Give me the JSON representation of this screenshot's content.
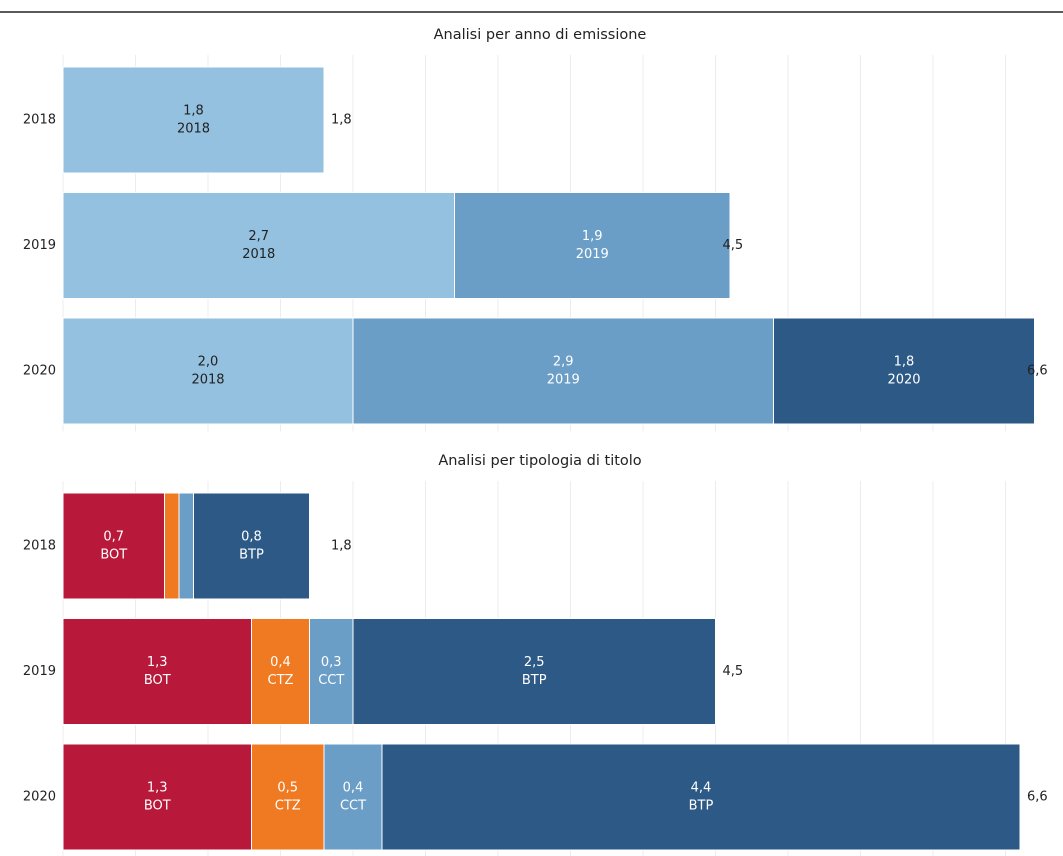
{
  "chart_data": [
    {
      "type": "bar",
      "orientation": "horizontal",
      "stacked": true,
      "title": "Analisi per anno di emissione",
      "categories": [
        "2018",
        "2019",
        "2020"
      ],
      "series": [
        {
          "name": "2018",
          "color": "#94c1e0",
          "values": [
            1.8,
            2.7,
            2.0
          ],
          "value_labels": [
            "1,8",
            "2,7",
            "2,0"
          ]
        },
        {
          "name": "2019",
          "color": "#6a9ec7",
          "values": [
            null,
            1.9,
            2.9
          ],
          "value_labels": [
            null,
            "1,9",
            "2,9"
          ]
        },
        {
          "name": "2020",
          "color": "#2d5986",
          "values": [
            null,
            null,
            1.8
          ],
          "value_labels": [
            null,
            null,
            "1,8"
          ]
        }
      ],
      "totals": [
        1.8,
        4.5,
        6.6
      ],
      "total_labels": [
        "1,8",
        "4,5",
        "6,6"
      ],
      "xlim": [
        0,
        6.6
      ],
      "xticks": [
        0,
        0.5,
        1,
        1.5,
        2,
        2.5,
        3,
        3.5,
        4,
        4.5,
        5,
        5.5,
        6,
        6.5
      ],
      "grid": true
    },
    {
      "type": "bar",
      "orientation": "horizontal",
      "stacked": true,
      "title": "Analisi per tipologia di titolo",
      "categories": [
        "2018",
        "2019",
        "2020"
      ],
      "series": [
        {
          "name": "BOT",
          "color": "#b8193b",
          "values": [
            0.7,
            1.3,
            1.3
          ],
          "value_labels": [
            "0,7",
            "1,3",
            "1,3"
          ]
        },
        {
          "name": "CTZ",
          "color": "#f07a22",
          "values": [
            0.1,
            0.4,
            0.5
          ],
          "value_labels": [
            null,
            "0,4",
            "0,5"
          ]
        },
        {
          "name": "CCT",
          "color": "#6a9ec7",
          "values": [
            0.1,
            0.3,
            0.4
          ],
          "value_labels": [
            null,
            "0,3",
            "0,4"
          ]
        },
        {
          "name": "BTP",
          "color": "#2d5986",
          "values": [
            0.8,
            2.5,
            4.4
          ],
          "value_labels": [
            "0,8",
            "2,5",
            "4,4"
          ]
        }
      ],
      "totals": [
        1.8,
        4.5,
        6.6
      ],
      "total_labels": [
        "1,8",
        "4,5",
        "6,6"
      ],
      "xlim": [
        0,
        6.6
      ],
      "xticks": [
        0,
        0.5,
        1,
        1.5,
        2,
        2.5,
        3,
        3.5,
        4,
        4.5,
        5,
        5.5,
        6,
        6.5
      ],
      "grid": true
    }
  ]
}
